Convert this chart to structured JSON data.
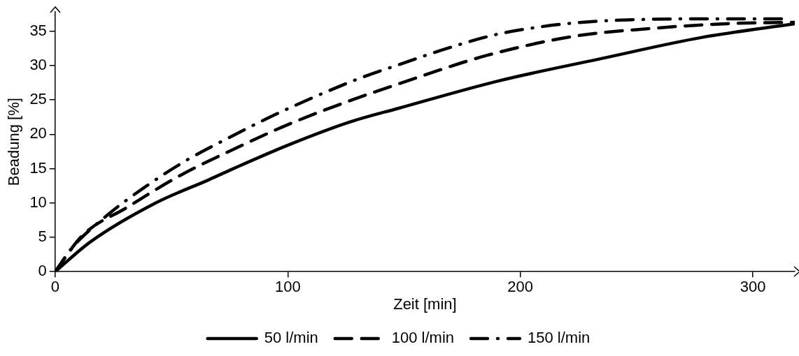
{
  "chart_data": {
    "type": "line",
    "xlabel": "Zeit [min]",
    "ylabel": "Beadung [%]",
    "xlim": [
      0,
      318
    ],
    "xticks": [
      0,
      100,
      200,
      300
    ],
    "ylim": [
      0,
      37.8
    ],
    "yticks": [
      0,
      5,
      10,
      15,
      20,
      25,
      30,
      35
    ],
    "grid": false,
    "legend": "bottom",
    "marker": "none",
    "series": [
      {
        "name": "50 l/min",
        "color": "#000000",
        "line_style": "solid",
        "x": [
          0,
          15,
          43.2,
          66.2,
          76.6,
          100.7,
          126.8,
          147.8,
          191,
          234.5,
          278,
          318
        ],
        "values": [
          0,
          4.3,
          10,
          13.4,
          15,
          18.5,
          21.8,
          23.8,
          27.8,
          31,
          34.1,
          36.1
        ]
      },
      {
        "name": "100 l/min",
        "color": "#000000",
        "line_style": "dashed",
        "x": [
          0,
          11.8,
          30.6,
          53.7,
          76.6,
          100.7,
          126.8,
          149.9,
          185.8,
          223.7,
          256,
          288.8,
          318
        ],
        "values": [
          0,
          5.3,
          9.3,
          14,
          17.8,
          21.5,
          24.9,
          27.6,
          31.5,
          34.3,
          35.4,
          36.1,
          36.3
        ]
      },
      {
        "name": "150 l/min",
        "color": "#000000",
        "line_style": "dashdot",
        "x": [
          0,
          7.6,
          22.3,
          38.5,
          55.9,
          74.1,
          92.3,
          111.2,
          130.5,
          150,
          169.4,
          189.3,
          209.8,
          230.5,
          251.3,
          272,
          292.9,
          313.7
        ],
        "values": [
          0,
          3.6,
          8.2,
          12.3,
          16.1,
          19.4,
          22.5,
          25.4,
          28.1,
          30.4,
          32.6,
          34.5,
          35.7,
          36.4,
          36.7,
          36.8,
          36.8,
          36.8
        ]
      }
    ]
  }
}
